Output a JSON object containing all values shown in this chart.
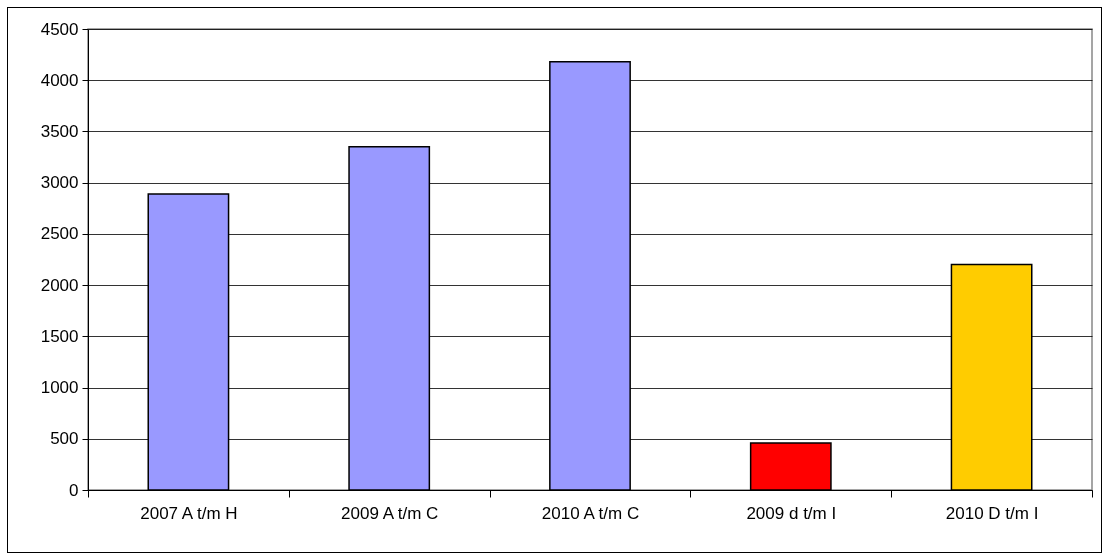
{
  "chart_data": {
    "type": "bar",
    "categories": [
      "2007 A t/m H",
      "2009 A t/m C",
      "2010 A t/m C",
      "2009 d t/m I",
      "2010 D t/m I"
    ],
    "values": [
      2890,
      3350,
      4180,
      460,
      2200
    ],
    "colors": [
      "#9999ff",
      "#9999ff",
      "#9999ff",
      "#ff0000",
      "#ffcc00"
    ],
    "ylim": [
      0,
      4500
    ],
    "yticks": [
      0,
      500,
      1000,
      1500,
      2000,
      2500,
      3000,
      3500,
      4000,
      4500
    ],
    "grid": "y"
  }
}
